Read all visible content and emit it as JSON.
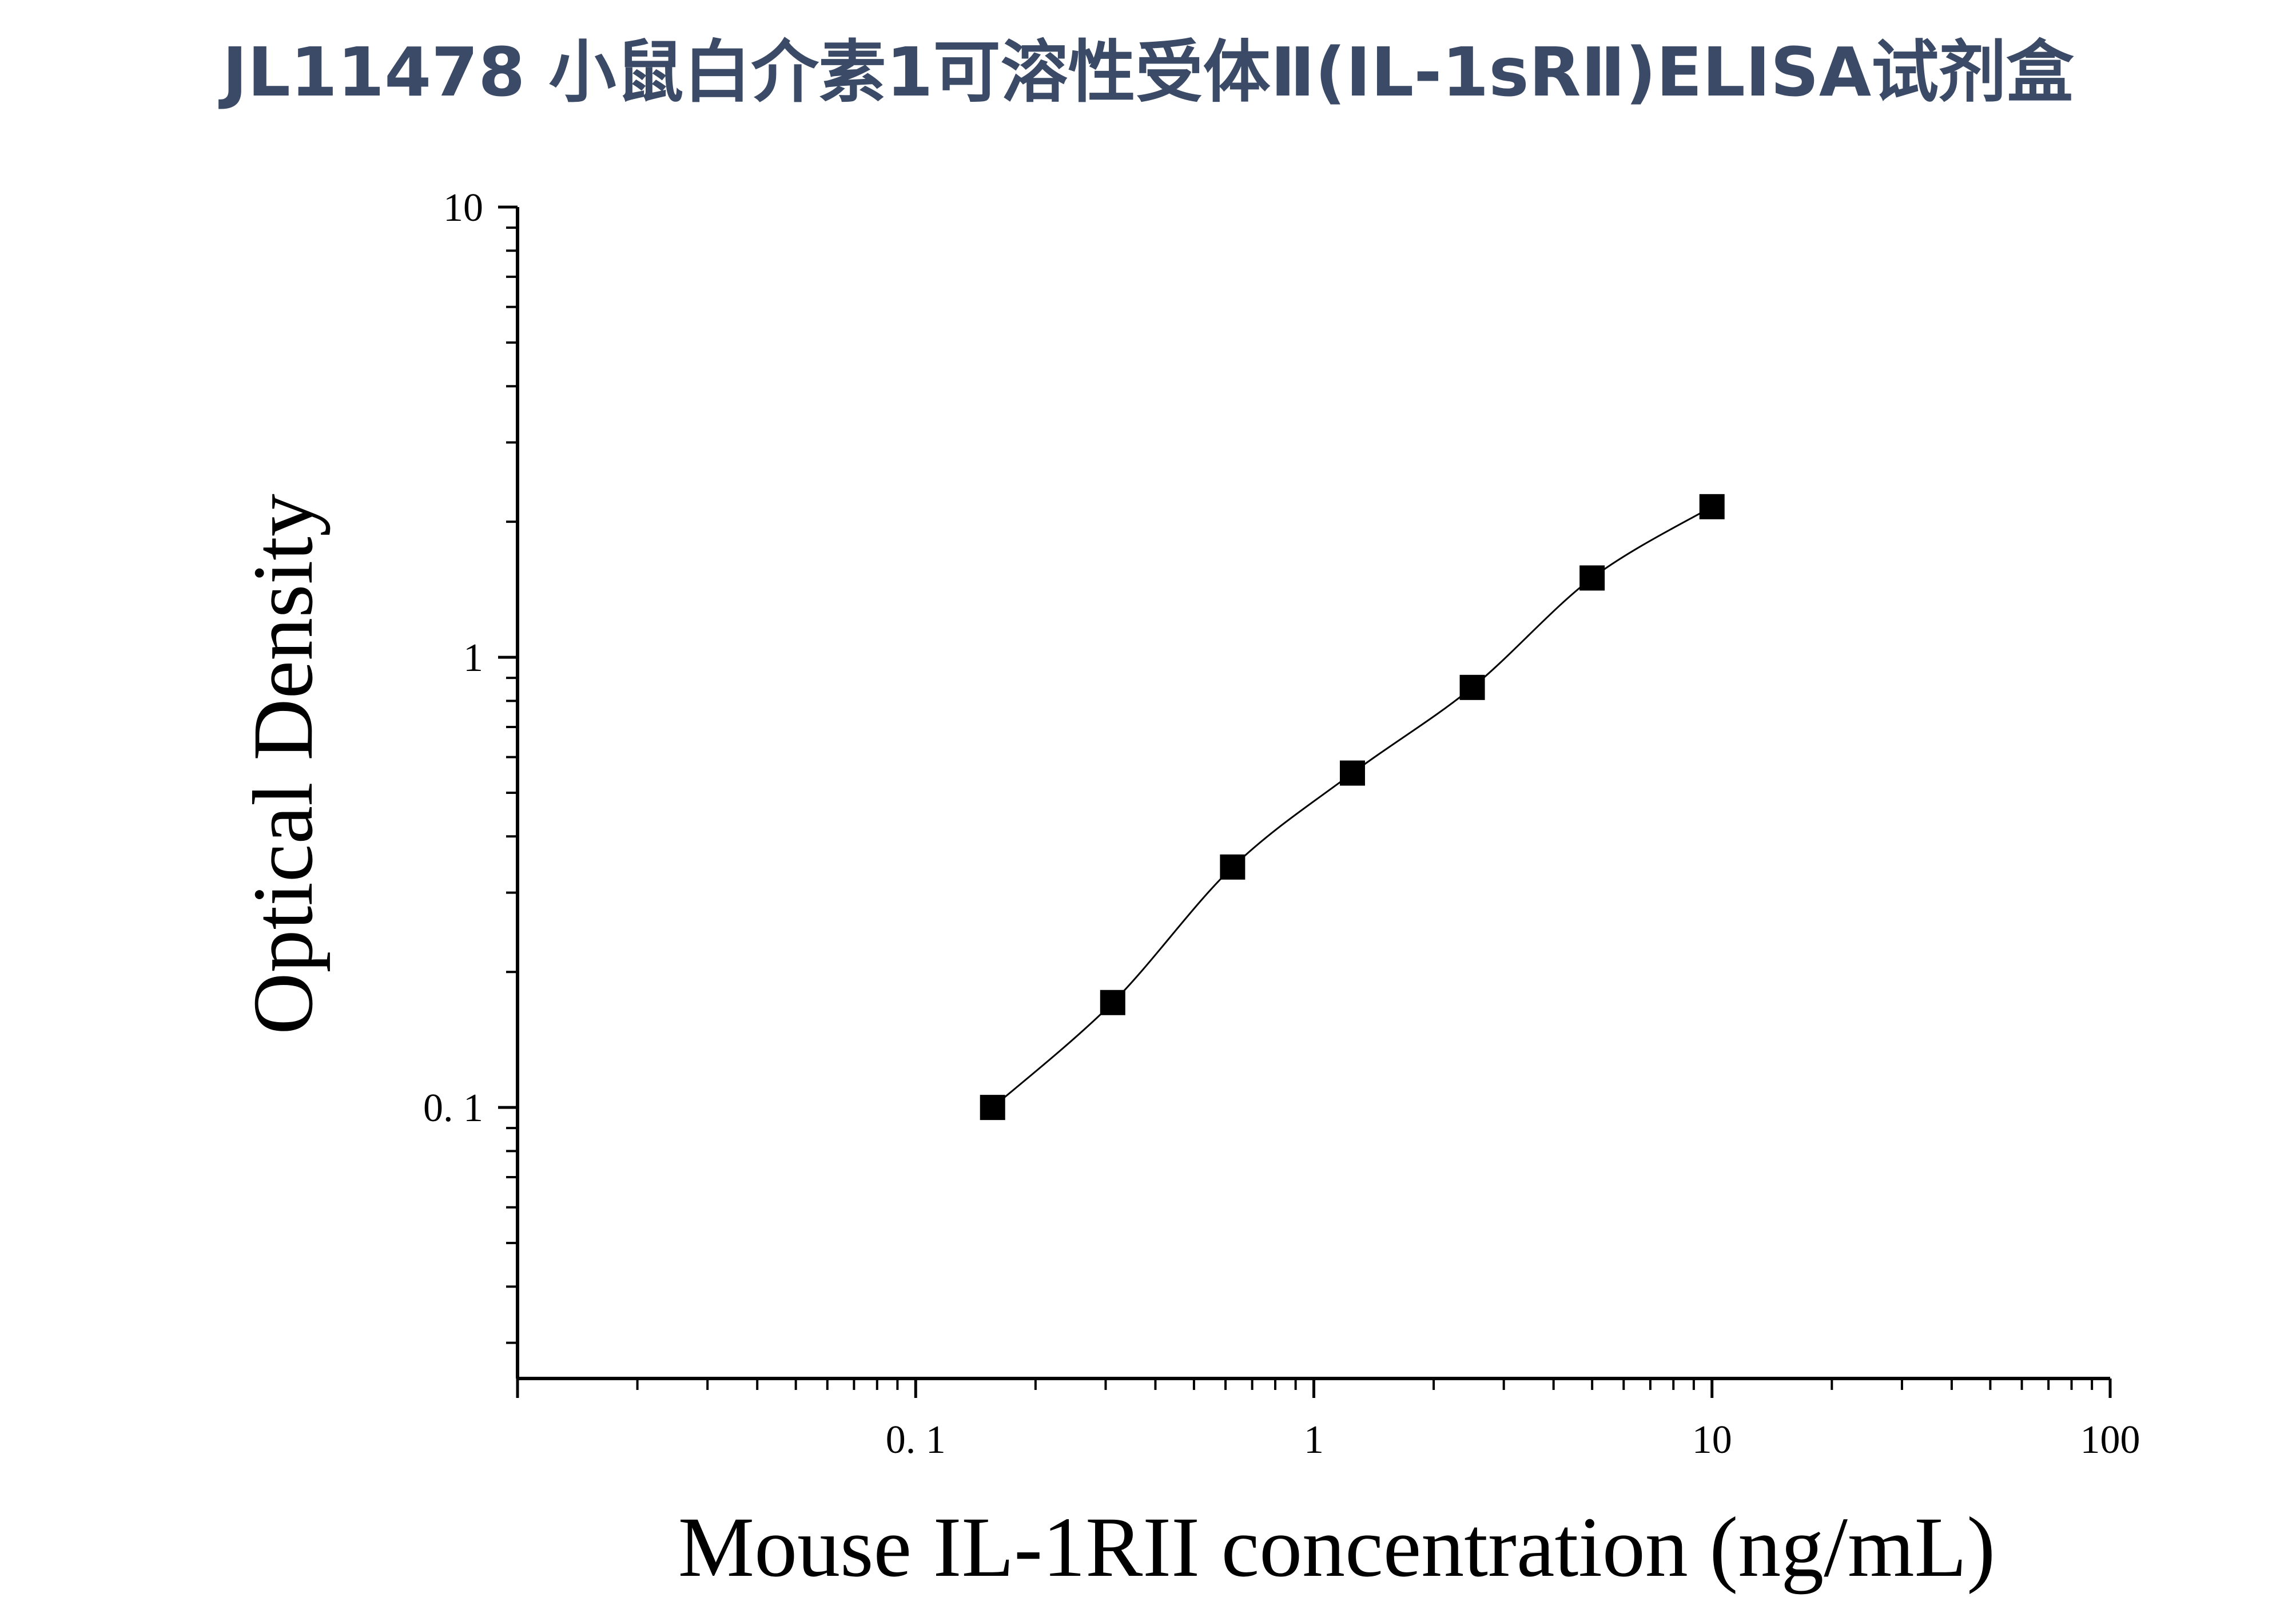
{
  "page": {
    "title": "JL11478 小鼠白介素1可溶性受体Ⅱ(IL-1sRⅡ)ELISA试剂盒"
  },
  "chart_data": {
    "type": "scatter",
    "title": "JL11478 小鼠白介素1可溶性受体Ⅱ(IL-1sRⅡ)ELISA试剂盒",
    "xlabel": "Mouse IL-1RII concentration (ng/mL)",
    "ylabel": "Optical Density",
    "x_scale": "log",
    "y_scale": "log",
    "xlim": [
      0.01,
      100
    ],
    "ylim": [
      0.025,
      10
    ],
    "x_ticks": [
      {
        "value": 0.1,
        "label": "0. 1"
      },
      {
        "value": 1,
        "label": "1"
      },
      {
        "value": 10,
        "label": "10"
      },
      {
        "value": 100,
        "label": "100"
      }
    ],
    "y_ticks": [
      {
        "value": 0.1,
        "label": "0. 1"
      },
      {
        "value": 1,
        "label": "1"
      },
      {
        "value": 10,
        "label": "10"
      }
    ],
    "grid": false,
    "legend": "none",
    "marker": "square",
    "marker_color": "#000000",
    "fit_line": true,
    "series": [
      {
        "x": [
          0.156,
          0.3125,
          0.625,
          1.25,
          2.5,
          5,
          10
        ],
        "y": [
          0.1,
          0.171,
          0.342,
          0.553,
          0.857,
          1.5,
          2.16
        ]
      }
    ]
  }
}
